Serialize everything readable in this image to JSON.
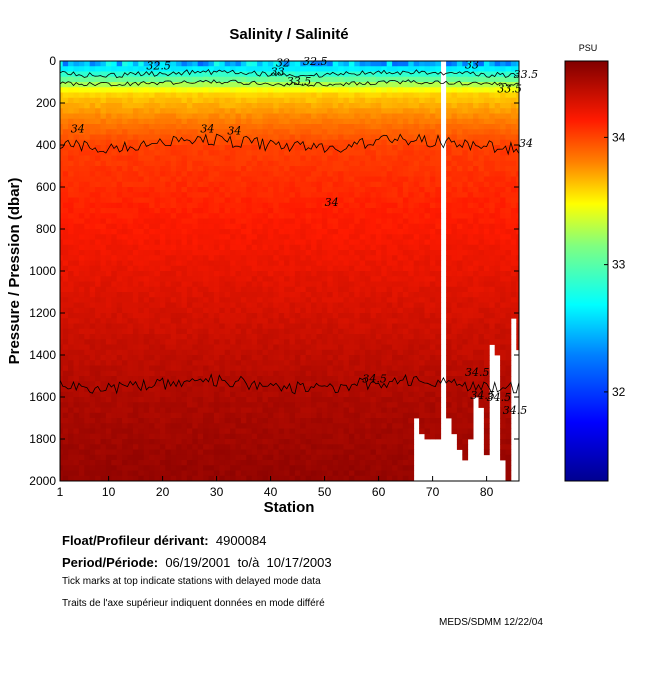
{
  "chart_data": {
    "type": "heatmap",
    "title": "Salinity / Salinité",
    "xlabel": "Station",
    "ylabel": "Pressure / Pression (dbar)",
    "xlim": [
      1,
      86
    ],
    "ylim": [
      2000,
      0
    ],
    "xticks": [
      "1",
      "10",
      "20",
      "30",
      "40",
      "50",
      "60",
      "70",
      "80"
    ],
    "yticks": [
      "0",
      "200",
      "400",
      "600",
      "800",
      "1000",
      "1200",
      "1400",
      "1600",
      "1800",
      "2000"
    ],
    "colorbar": {
      "unit": "PSU",
      "range": [
        31.3,
        34.6
      ],
      "ticks": [
        "34",
        "33",
        "32"
      ]
    },
    "contour_labels": [
      "32.5",
      "32",
      "32.5",
      "33",
      "33",
      "33.5",
      "33.5",
      "33.5",
      "34",
      "34",
      "34",
      "34",
      "34",
      "34.5",
      "34.5",
      "34.5",
      "34.5",
      "34.5"
    ]
  },
  "info": {
    "float_label": "Float/Profileur dérivant:",
    "float_id": "4900084",
    "period_label": "Period/Période:",
    "period_start": "06/19/2001",
    "period_sep": "to/à",
    "period_end": "10/17/2003",
    "note_en": "Tick marks at top indicate stations with delayed mode data",
    "note_fr": "Traits de l'axe supérieur indiquent données en mode différé",
    "credit": "MEDS/SDMM  12/22/04"
  },
  "colors": {
    "deep": "#b30000",
    "mid": "#ff3a00",
    "surface": "#00e6ff",
    "missing": "#ffffff"
  }
}
